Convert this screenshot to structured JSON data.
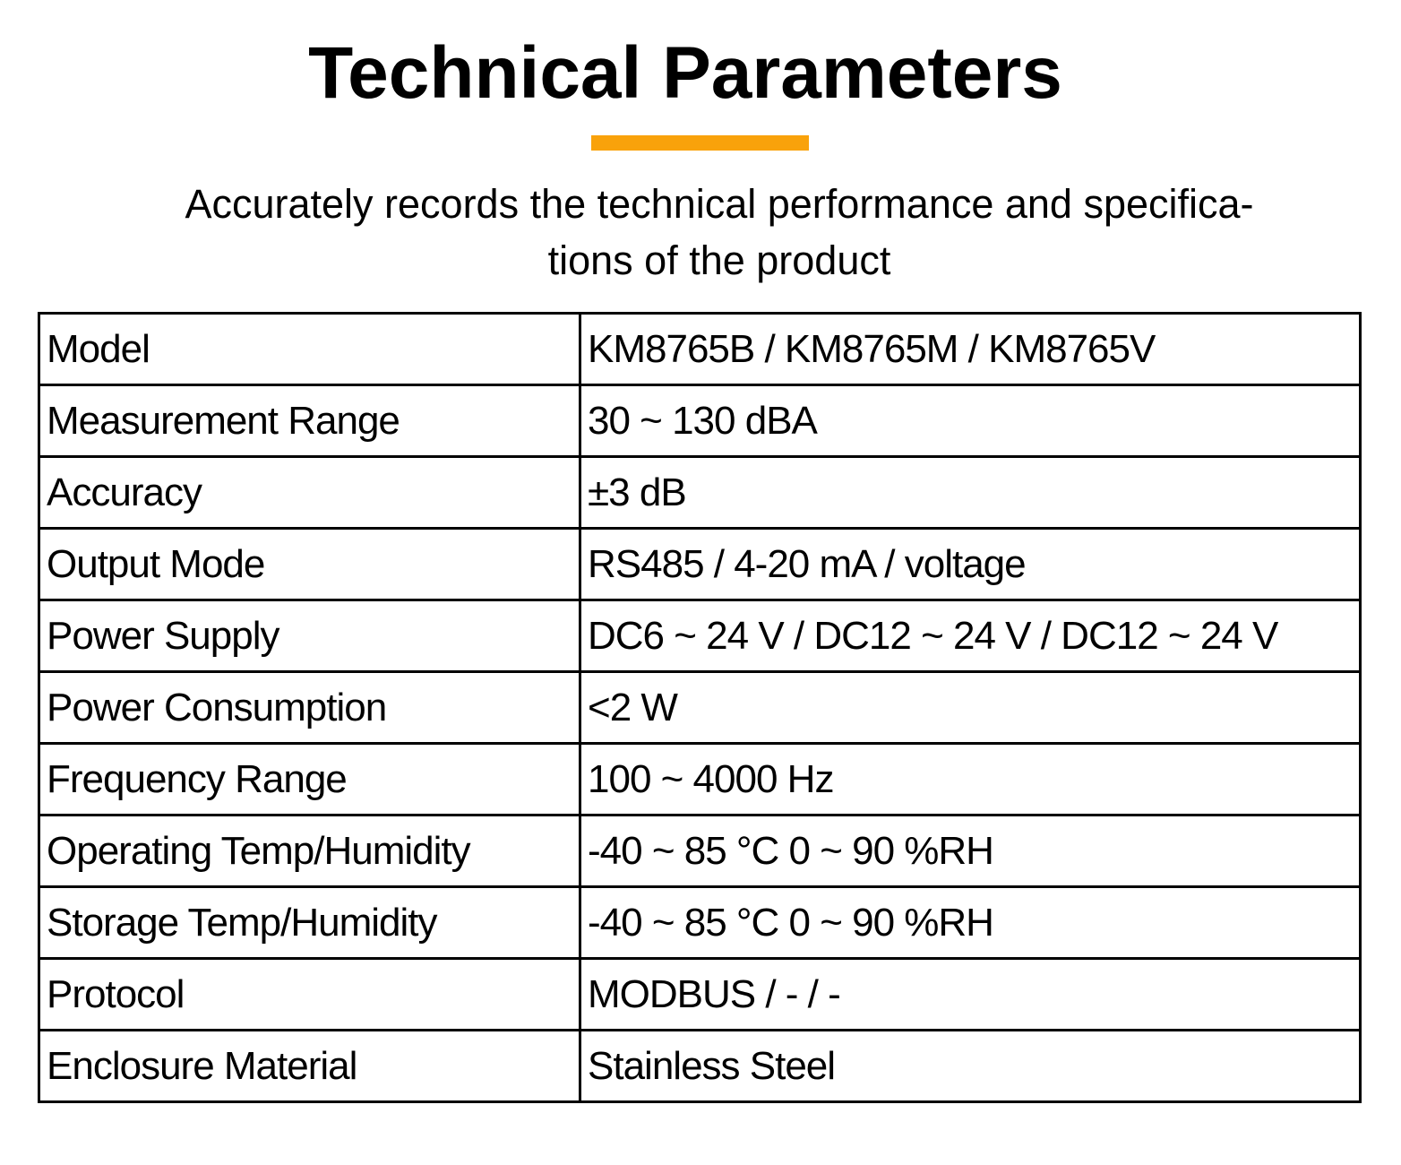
{
  "header": {
    "title": "Technical Parameters",
    "subtitle_lines": [
      "Accurately records the technical performance and specifica-",
      "tions of the product"
    ]
  },
  "table": {
    "rows": [
      [
        "Model",
        "KM8765B / KM8765M / KM8765V"
      ],
      [
        "Measurement Range",
        "30 ~ 130 dBA"
      ],
      [
        "Accuracy",
        "±3 dB"
      ],
      [
        "Output Mode",
        "RS485 / 4-20 mA / voltage"
      ],
      [
        "Power Supply",
        "DC6 ~ 24 V / DC12 ~ 24 V / DC12 ~ 24 V"
      ],
      [
        "Power Consumption",
        "<2 W"
      ],
      [
        "Frequency Range",
        "100 ~ 4000 Hz"
      ],
      [
        "Operating Temp/Humidity",
        "-40 ~ 85 °C 0 ~ 90 %RH"
      ],
      [
        "Storage Temp/Humidity",
        "-40 ~ 85 °C 0 ~ 90 %RH"
      ],
      [
        "Protocol",
        "MODBUS / - / -"
      ],
      [
        "Enclosure Material",
        "Stainless Steel"
      ]
    ]
  }
}
